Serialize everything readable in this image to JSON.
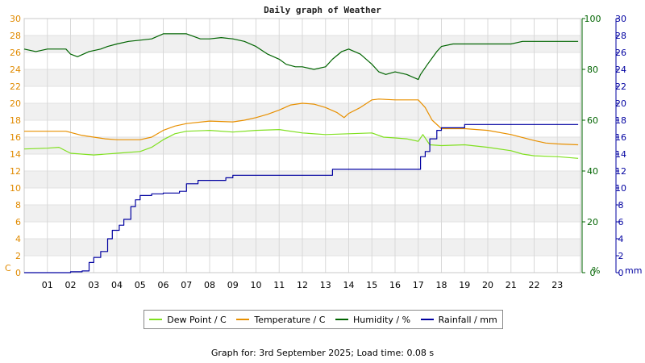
{
  "chart_data": {
    "type": "line",
    "title": "Daily graph of Weather",
    "x_label_hours": [
      "01",
      "02",
      "03",
      "04",
      "05",
      "06",
      "07",
      "08",
      "09",
      "10",
      "11",
      "12",
      "13",
      "14",
      "15",
      "16",
      "17",
      "18",
      "19",
      "20",
      "21",
      "22",
      "23"
    ],
    "x_range": [
      0,
      24
    ],
    "y_left": {
      "unit": "C",
      "range": [
        0,
        30
      ],
      "ticks": [
        0,
        2,
        4,
        6,
        8,
        10,
        12,
        14,
        16,
        18,
        20,
        22,
        24,
        26,
        28,
        30
      ],
      "color": "#e08a00"
    },
    "y_humidity": {
      "unit": "%",
      "range": [
        0,
        100
      ],
      "ticks": [
        0,
        20,
        40,
        60,
        80,
        100
      ],
      "color": "#006400"
    },
    "y_rain": {
      "unit": "mm",
      "range": [
        0,
        30
      ],
      "ticks": [
        0,
        2,
        4,
        6,
        8,
        10,
        12,
        14,
        16,
        18,
        20,
        22,
        24,
        26,
        28,
        30
      ],
      "color": "#0000a0"
    },
    "grid": true,
    "legend_position": "bottom",
    "series": [
      {
        "name": "Dew Point / C",
        "color": "#80e020",
        "axis": "left",
        "points": [
          [
            0,
            14.6
          ],
          [
            1,
            14.7
          ],
          [
            1.5,
            14.8
          ],
          [
            2,
            14.1
          ],
          [
            3,
            13.9
          ],
          [
            4,
            14.1
          ],
          [
            5,
            14.3
          ],
          [
            5.5,
            14.8
          ],
          [
            6,
            15.7
          ],
          [
            6.5,
            16.4
          ],
          [
            7,
            16.7
          ],
          [
            8,
            16.8
          ],
          [
            9,
            16.6
          ],
          [
            10,
            16.8
          ],
          [
            11,
            16.9
          ],
          [
            12,
            16.5
          ],
          [
            13,
            16.3
          ],
          [
            14,
            16.4
          ],
          [
            15,
            16.5
          ],
          [
            15.5,
            16.0
          ],
          [
            16,
            15.9
          ],
          [
            16.5,
            15.8
          ],
          [
            17,
            15.5
          ],
          [
            17.2,
            16.3
          ],
          [
            17.5,
            15.1
          ],
          [
            18,
            15.0
          ],
          [
            19,
            15.1
          ],
          [
            20,
            14.8
          ],
          [
            21,
            14.4
          ],
          [
            21.5,
            14.0
          ],
          [
            22,
            13.8
          ],
          [
            23,
            13.7
          ],
          [
            23.9,
            13.5
          ]
        ]
      },
      {
        "name": "Temperature / C",
        "color": "#e89000",
        "axis": "left",
        "points": [
          [
            0,
            16.7
          ],
          [
            1,
            16.7
          ],
          [
            1.8,
            16.7
          ],
          [
            2.5,
            16.2
          ],
          [
            3,
            16.0
          ],
          [
            3.5,
            15.8
          ],
          [
            4,
            15.7
          ],
          [
            5,
            15.7
          ],
          [
            5.5,
            16.0
          ],
          [
            6,
            16.8
          ],
          [
            6.5,
            17.3
          ],
          [
            7,
            17.6
          ],
          [
            8,
            17.9
          ],
          [
            9,
            17.8
          ],
          [
            9.5,
            18.0
          ],
          [
            10,
            18.3
          ],
          [
            10.5,
            18.7
          ],
          [
            11,
            19.2
          ],
          [
            11.5,
            19.8
          ],
          [
            12,
            20.0
          ],
          [
            12.5,
            19.9
          ],
          [
            13,
            19.5
          ],
          [
            13.5,
            18.9
          ],
          [
            13.8,
            18.3
          ],
          [
            14,
            18.8
          ],
          [
            14.5,
            19.5
          ],
          [
            15,
            20.4
          ],
          [
            15.3,
            20.5
          ],
          [
            16,
            20.4
          ],
          [
            17,
            20.4
          ],
          [
            17.3,
            19.5
          ],
          [
            17.6,
            18.0
          ],
          [
            18,
            17.0
          ],
          [
            19,
            17.0
          ],
          [
            20,
            16.8
          ],
          [
            21,
            16.3
          ],
          [
            22,
            15.6
          ],
          [
            22.5,
            15.3
          ],
          [
            23,
            15.2
          ],
          [
            23.9,
            15.1
          ]
        ]
      },
      {
        "name": "Humidity / %",
        "color": "#006400",
        "axis": "humidity",
        "points": [
          [
            0,
            88
          ],
          [
            0.5,
            87
          ],
          [
            1,
            88
          ],
          [
            1.8,
            88
          ],
          [
            2,
            86
          ],
          [
            2.3,
            85
          ],
          [
            2.8,
            87
          ],
          [
            3.3,
            88
          ],
          [
            3.6,
            89
          ],
          [
            4,
            90
          ],
          [
            4.5,
            91
          ],
          [
            5,
            91.5
          ],
          [
            5.5,
            92
          ],
          [
            6,
            94
          ],
          [
            7,
            94
          ],
          [
            7.3,
            93
          ],
          [
            7.6,
            92
          ],
          [
            8,
            92
          ],
          [
            8.5,
            92.5
          ],
          [
            9,
            92
          ],
          [
            9.5,
            91
          ],
          [
            10,
            89
          ],
          [
            10.5,
            86
          ],
          [
            11,
            84
          ],
          [
            11.3,
            82
          ],
          [
            11.7,
            81
          ],
          [
            12,
            81
          ],
          [
            12.5,
            80
          ],
          [
            13,
            81
          ],
          [
            13.3,
            84
          ],
          [
            13.7,
            87
          ],
          [
            14,
            88
          ],
          [
            14.5,
            86
          ],
          [
            15,
            82
          ],
          [
            15.3,
            79
          ],
          [
            15.6,
            78
          ],
          [
            16,
            79
          ],
          [
            16.5,
            78
          ],
          [
            17,
            76
          ],
          [
            17.1,
            78
          ],
          [
            17.4,
            82
          ],
          [
            17.8,
            87
          ],
          [
            18,
            89
          ],
          [
            18.5,
            90
          ],
          [
            19,
            90
          ],
          [
            20,
            90
          ],
          [
            21,
            90
          ],
          [
            21.5,
            91
          ],
          [
            22,
            91
          ],
          [
            23,
            91
          ],
          [
            23.9,
            91
          ]
        ]
      },
      {
        "name": "Rainfall / mm",
        "color": "#0000a0",
        "axis": "rain",
        "points": [
          [
            0,
            0
          ],
          [
            1.5,
            0
          ],
          [
            2,
            0.1
          ],
          [
            2.5,
            0.2
          ],
          [
            2.8,
            1.2
          ],
          [
            3,
            1.8
          ],
          [
            3.3,
            2.5
          ],
          [
            3.6,
            4.0
          ],
          [
            3.8,
            5.0
          ],
          [
            4.1,
            5.6
          ],
          [
            4.3,
            6.3
          ],
          [
            4.6,
            7.8
          ],
          [
            4.8,
            8.6
          ],
          [
            5,
            9.1
          ],
          [
            5.5,
            9.3
          ],
          [
            6,
            9.4
          ],
          [
            6.7,
            9.6
          ],
          [
            7,
            10.5
          ],
          [
            7.5,
            10.9
          ],
          [
            8,
            10.9
          ],
          [
            8.7,
            11.2
          ],
          [
            9,
            11.5
          ],
          [
            10,
            11.5
          ],
          [
            11,
            11.5
          ],
          [
            13,
            11.5
          ],
          [
            13.3,
            12.2
          ],
          [
            14,
            12.2
          ],
          [
            16,
            12.2
          ],
          [
            17,
            12.2
          ],
          [
            17.1,
            13.7
          ],
          [
            17.3,
            14.3
          ],
          [
            17.5,
            15.8
          ],
          [
            17.8,
            16.8
          ],
          [
            18,
            17.1
          ],
          [
            18.7,
            17.1
          ],
          [
            19,
            17.5
          ],
          [
            20,
            17.5
          ],
          [
            21,
            17.5
          ],
          [
            22,
            17.5
          ],
          [
            23,
            17.5
          ],
          [
            23.9,
            17.5
          ]
        ]
      }
    ]
  },
  "axis_unit_labels": {
    "left": "C",
    "humidity": "%",
    "rain": "mm"
  },
  "legend": [
    {
      "label": "Dew Point / C",
      "color": "#80e020"
    },
    {
      "label": "Temperature / C",
      "color": "#e89000"
    },
    {
      "label": "Humidity / %",
      "color": "#006400"
    },
    {
      "label": "Rainfall / mm",
      "color": "#0000a0"
    }
  ],
  "footer": "Graph for: 3rd September 2025; Load time: 0.08 s"
}
